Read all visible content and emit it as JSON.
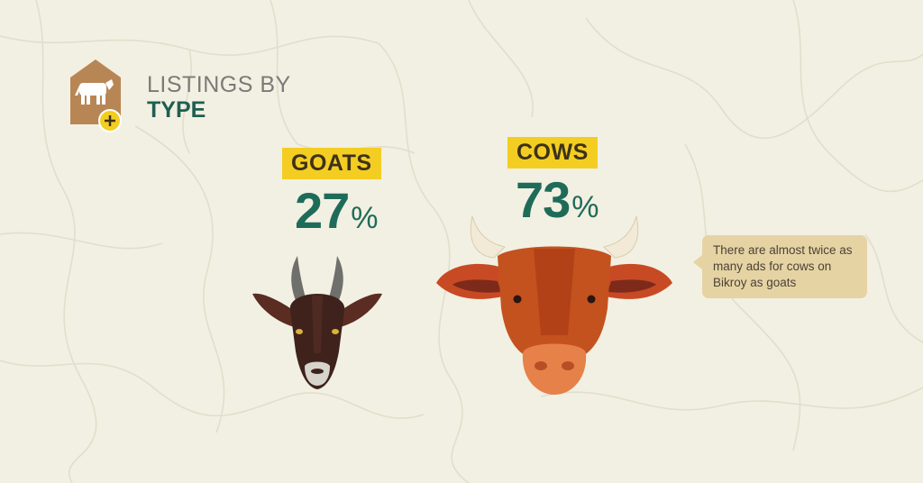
{
  "heading": {
    "line1": "LISTINGS BY",
    "line2": "TYPE"
  },
  "logo": {
    "icon": "cow-plus-tag-icon",
    "color": "#b88655",
    "badge_color": "#f2cd22"
  },
  "chart_data": {
    "type": "pie",
    "categories": [
      "GOATS",
      "COWS"
    ],
    "values": [
      27,
      73
    ],
    "labels": [
      {
        "category": "GOATS",
        "number": "27",
        "unit": "%"
      },
      {
        "category": "COWS",
        "number": "73",
        "unit": "%"
      }
    ],
    "note": "There are almost twice as many ads for cows on Bikroy as goats"
  },
  "colors": {
    "label_bg": "#f4cd22",
    "percent_text": "#1f6b59",
    "callout_bg": "#e6d3a4"
  }
}
